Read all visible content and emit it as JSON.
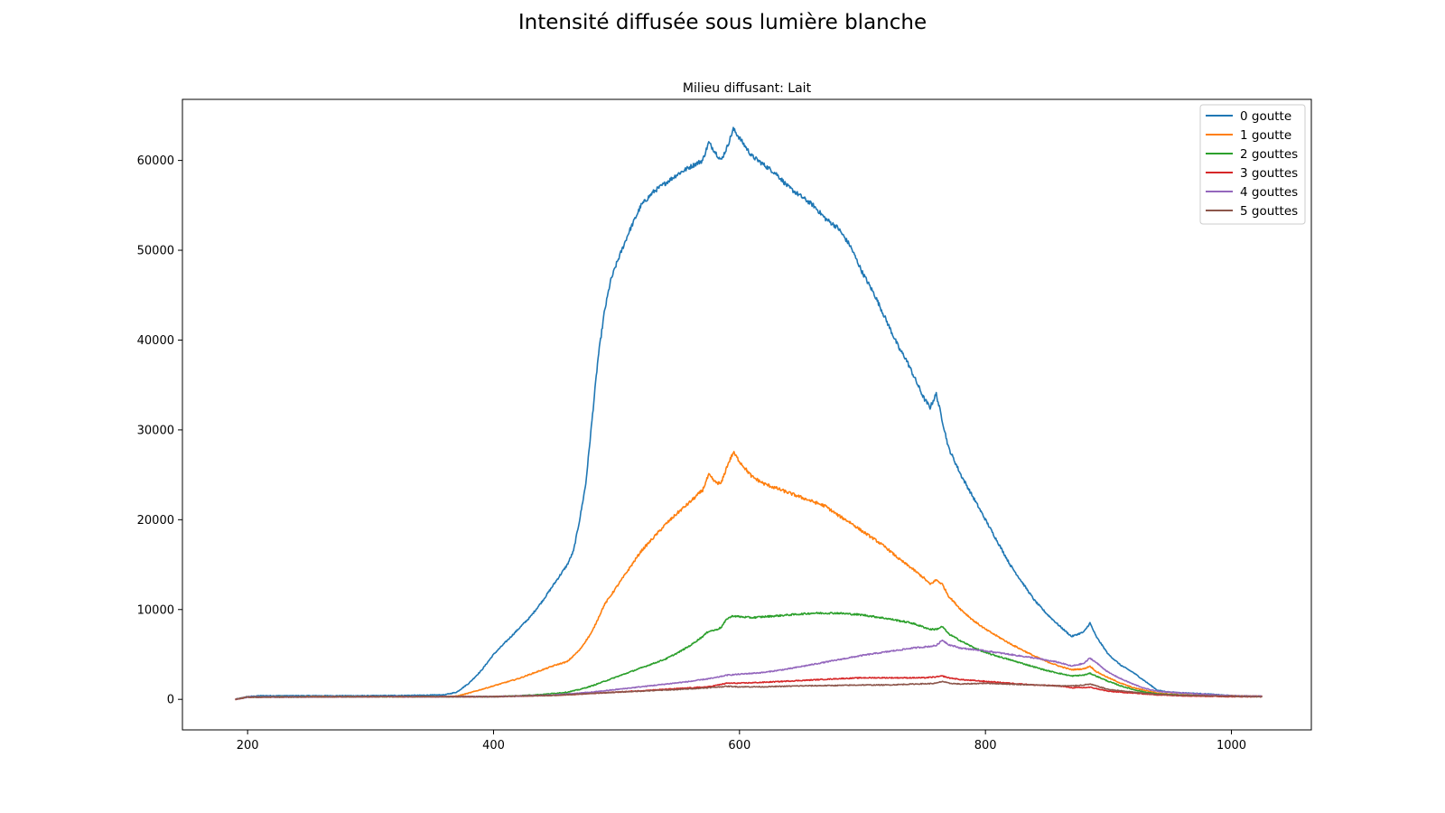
{
  "figure_title": "Intensité diffusée sous lumière blanche",
  "chart_data": {
    "type": "line",
    "title": "Milieu diffusant: Lait",
    "xlabel": "",
    "ylabel": "",
    "xlim": [
      147,
      1065
    ],
    "ylim": [
      -3400,
      66800
    ],
    "x_ticks": [
      200,
      400,
      600,
      800,
      1000
    ],
    "y_ticks": [
      0,
      10000,
      20000,
      30000,
      40000,
      50000,
      60000
    ],
    "grid": false,
    "legend_position": "top-right",
    "series": [
      {
        "name": "0 goutte",
        "color": "#1f77b4",
        "points": [
          [
            190,
            0
          ],
          [
            200,
            300
          ],
          [
            210,
            400
          ],
          [
            250,
            400
          ],
          [
            300,
            400
          ],
          [
            340,
            450
          ],
          [
            360,
            500
          ],
          [
            370,
            800
          ],
          [
            380,
            1800
          ],
          [
            390,
            3200
          ],
          [
            400,
            5000
          ],
          [
            410,
            6400
          ],
          [
            420,
            7800
          ],
          [
            430,
            9200
          ],
          [
            440,
            11000
          ],
          [
            450,
            13000
          ],
          [
            460,
            15000
          ],
          [
            465,
            16500
          ],
          [
            470,
            20000
          ],
          [
            475,
            24000
          ],
          [
            480,
            31000
          ],
          [
            485,
            38000
          ],
          [
            490,
            43000
          ],
          [
            495,
            46500
          ],
          [
            500,
            48500
          ],
          [
            510,
            52000
          ],
          [
            520,
            55000
          ],
          [
            530,
            56500
          ],
          [
            540,
            57500
          ],
          [
            550,
            58500
          ],
          [
            560,
            59300
          ],
          [
            570,
            60000
          ],
          [
            575,
            62000
          ],
          [
            580,
            61000
          ],
          [
            585,
            60000
          ],
          [
            590,
            61500
          ],
          [
            595,
            63500
          ],
          [
            600,
            62500
          ],
          [
            610,
            60500
          ],
          [
            620,
            59500
          ],
          [
            630,
            58500
          ],
          [
            640,
            57000
          ],
          [
            650,
            56000
          ],
          [
            660,
            55000
          ],
          [
            670,
            53500
          ],
          [
            680,
            52500
          ],
          [
            690,
            50500
          ],
          [
            700,
            47500
          ],
          [
            710,
            45000
          ],
          [
            720,
            42000
          ],
          [
            730,
            39000
          ],
          [
            735,
            38000
          ],
          [
            740,
            36500
          ],
          [
            750,
            33500
          ],
          [
            755,
            32500
          ],
          [
            760,
            34000
          ],
          [
            765,
            31000
          ],
          [
            770,
            28000
          ],
          [
            780,
            25000
          ],
          [
            790,
            22500
          ],
          [
            800,
            20000
          ],
          [
            810,
            17500
          ],
          [
            820,
            15000
          ],
          [
            830,
            13000
          ],
          [
            840,
            11000
          ],
          [
            850,
            9500
          ],
          [
            860,
            8200
          ],
          [
            870,
            7000
          ],
          [
            880,
            7500
          ],
          [
            885,
            8500
          ],
          [
            890,
            7000
          ],
          [
            900,
            5000
          ],
          [
            910,
            3800
          ],
          [
            920,
            3000
          ],
          [
            930,
            2000
          ],
          [
            940,
            1000
          ],
          [
            950,
            800
          ],
          [
            980,
            600
          ],
          [
            1000,
            400
          ],
          [
            1025,
            350
          ]
        ]
      },
      {
        "name": "1 goutte",
        "color": "#ff7f0e",
        "points": [
          [
            190,
            0
          ],
          [
            200,
            250
          ],
          [
            250,
            300
          ],
          [
            300,
            300
          ],
          [
            350,
            300
          ],
          [
            370,
            350
          ],
          [
            380,
            700
          ],
          [
            390,
            1100
          ],
          [
            400,
            1500
          ],
          [
            410,
            1900
          ],
          [
            420,
            2300
          ],
          [
            430,
            2800
          ],
          [
            440,
            3300
          ],
          [
            450,
            3800
          ],
          [
            460,
            4200
          ],
          [
            470,
            5500
          ],
          [
            480,
            7500
          ],
          [
            490,
            10500
          ],
          [
            500,
            12500
          ],
          [
            510,
            14500
          ],
          [
            520,
            16500
          ],
          [
            530,
            18000
          ],
          [
            540,
            19500
          ],
          [
            550,
            20800
          ],
          [
            560,
            22000
          ],
          [
            570,
            23300
          ],
          [
            575,
            25000
          ],
          [
            580,
            24200
          ],
          [
            585,
            24000
          ],
          [
            590,
            26000
          ],
          [
            595,
            27500
          ],
          [
            600,
            26500
          ],
          [
            610,
            24800
          ],
          [
            620,
            24000
          ],
          [
            630,
            23500
          ],
          [
            640,
            23000
          ],
          [
            650,
            22500
          ],
          [
            660,
            22000
          ],
          [
            670,
            21500
          ],
          [
            680,
            20500
          ],
          [
            690,
            19700
          ],
          [
            700,
            18700
          ],
          [
            710,
            17800
          ],
          [
            720,
            16800
          ],
          [
            730,
            15600
          ],
          [
            740,
            14600
          ],
          [
            750,
            13500
          ],
          [
            755,
            12800
          ],
          [
            760,
            13300
          ],
          [
            765,
            12800
          ],
          [
            770,
            11500
          ],
          [
            780,
            10000
          ],
          [
            790,
            8800
          ],
          [
            800,
            7800
          ],
          [
            810,
            7000
          ],
          [
            820,
            6200
          ],
          [
            830,
            5500
          ],
          [
            840,
            4800
          ],
          [
            850,
            4200
          ],
          [
            860,
            3700
          ],
          [
            870,
            3300
          ],
          [
            880,
            3400
          ],
          [
            885,
            3700
          ],
          [
            890,
            3100
          ],
          [
            900,
            2400
          ],
          [
            910,
            1800
          ],
          [
            920,
            1300
          ],
          [
            930,
            1000
          ],
          [
            940,
            700
          ],
          [
            960,
            500
          ],
          [
            1000,
            400
          ],
          [
            1025,
            350
          ]
        ]
      },
      {
        "name": "2 gouttes",
        "color": "#2ca02c",
        "points": [
          [
            190,
            0
          ],
          [
            200,
            250
          ],
          [
            300,
            300
          ],
          [
            400,
            300
          ],
          [
            420,
            400
          ],
          [
            440,
            550
          ],
          [
            460,
            800
          ],
          [
            470,
            1100
          ],
          [
            480,
            1500
          ],
          [
            490,
            2000
          ],
          [
            500,
            2500
          ],
          [
            510,
            3000
          ],
          [
            520,
            3500
          ],
          [
            530,
            4000
          ],
          [
            540,
            4500
          ],
          [
            550,
            5200
          ],
          [
            560,
            6000
          ],
          [
            570,
            7000
          ],
          [
            575,
            7600
          ],
          [
            580,
            7700
          ],
          [
            585,
            8000
          ],
          [
            590,
            9000
          ],
          [
            595,
            9300
          ],
          [
            600,
            9200
          ],
          [
            610,
            9100
          ],
          [
            620,
            9200
          ],
          [
            640,
            9400
          ],
          [
            660,
            9600
          ],
          [
            680,
            9600
          ],
          [
            700,
            9400
          ],
          [
            720,
            9000
          ],
          [
            740,
            8500
          ],
          [
            755,
            7800
          ],
          [
            760,
            7800
          ],
          [
            765,
            8100
          ],
          [
            770,
            7300
          ],
          [
            780,
            6500
          ],
          [
            790,
            5800
          ],
          [
            800,
            5200
          ],
          [
            810,
            4800
          ],
          [
            820,
            4400
          ],
          [
            830,
            4000
          ],
          [
            840,
            3600
          ],
          [
            850,
            3200
          ],
          [
            860,
            2900
          ],
          [
            870,
            2600
          ],
          [
            880,
            2700
          ],
          [
            885,
            2900
          ],
          [
            890,
            2600
          ],
          [
            900,
            2000
          ],
          [
            910,
            1500
          ],
          [
            920,
            1100
          ],
          [
            930,
            800
          ],
          [
            940,
            600
          ],
          [
            960,
            450
          ],
          [
            1000,
            350
          ],
          [
            1025,
            300
          ]
        ]
      },
      {
        "name": "3 gouttes",
        "color": "#d62728",
        "points": [
          [
            190,
            0
          ],
          [
            200,
            250
          ],
          [
            300,
            300
          ],
          [
            400,
            300
          ],
          [
            450,
            450
          ],
          [
            500,
            800
          ],
          [
            550,
            1200
          ],
          [
            575,
            1400
          ],
          [
            590,
            1800
          ],
          [
            600,
            1800
          ],
          [
            620,
            1900
          ],
          [
            650,
            2100
          ],
          [
            680,
            2300
          ],
          [
            700,
            2400
          ],
          [
            730,
            2400
          ],
          [
            750,
            2400
          ],
          [
            760,
            2500
          ],
          [
            765,
            2600
          ],
          [
            770,
            2400
          ],
          [
            780,
            2200
          ],
          [
            800,
            2000
          ],
          [
            820,
            1800
          ],
          [
            840,
            1600
          ],
          [
            860,
            1500
          ],
          [
            870,
            1300
          ],
          [
            880,
            1300
          ],
          [
            885,
            1350
          ],
          [
            890,
            1200
          ],
          [
            900,
            900
          ],
          [
            920,
            700
          ],
          [
            940,
            500
          ],
          [
            960,
            400
          ],
          [
            1000,
            300
          ],
          [
            1025,
            300
          ]
        ]
      },
      {
        "name": "4 gouttes",
        "color": "#9467bd",
        "points": [
          [
            190,
            0
          ],
          [
            200,
            250
          ],
          [
            300,
            300
          ],
          [
            400,
            300
          ],
          [
            450,
            500
          ],
          [
            480,
            800
          ],
          [
            500,
            1100
          ],
          [
            520,
            1400
          ],
          [
            540,
            1700
          ],
          [
            560,
            2000
          ],
          [
            580,
            2400
          ],
          [
            590,
            2700
          ],
          [
            600,
            2800
          ],
          [
            620,
            3000
          ],
          [
            640,
            3400
          ],
          [
            660,
            3900
          ],
          [
            680,
            4400
          ],
          [
            700,
            4900
          ],
          [
            720,
            5300
          ],
          [
            740,
            5700
          ],
          [
            755,
            5900
          ],
          [
            760,
            6000
          ],
          [
            765,
            6600
          ],
          [
            770,
            6100
          ],
          [
            780,
            5700
          ],
          [
            800,
            5400
          ],
          [
            820,
            5000
          ],
          [
            840,
            4600
          ],
          [
            860,
            4100
          ],
          [
            870,
            3700
          ],
          [
            880,
            4000
          ],
          [
            885,
            4600
          ],
          [
            890,
            4100
          ],
          [
            900,
            3000
          ],
          [
            910,
            2300
          ],
          [
            920,
            1700
          ],
          [
            930,
            1200
          ],
          [
            940,
            900
          ],
          [
            960,
            700
          ],
          [
            1000,
            400
          ],
          [
            1025,
            350
          ]
        ]
      },
      {
        "name": "5 gouttes",
        "color": "#8c564b",
        "points": [
          [
            190,
            0
          ],
          [
            200,
            250
          ],
          [
            300,
            300
          ],
          [
            400,
            300
          ],
          [
            450,
            450
          ],
          [
            500,
            800
          ],
          [
            550,
            1100
          ],
          [
            575,
            1300
          ],
          [
            590,
            1450
          ],
          [
            600,
            1400
          ],
          [
            620,
            1400
          ],
          [
            650,
            1500
          ],
          [
            680,
            1550
          ],
          [
            700,
            1600
          ],
          [
            720,
            1600
          ],
          [
            740,
            1700
          ],
          [
            755,
            1750
          ],
          [
            760,
            1800
          ],
          [
            765,
            2000
          ],
          [
            770,
            1800
          ],
          [
            780,
            1700
          ],
          [
            800,
            1800
          ],
          [
            820,
            1700
          ],
          [
            840,
            1600
          ],
          [
            860,
            1500
          ],
          [
            870,
            1500
          ],
          [
            880,
            1600
          ],
          [
            885,
            1700
          ],
          [
            890,
            1500
          ],
          [
            900,
            1100
          ],
          [
            920,
            800
          ],
          [
            940,
            550
          ],
          [
            960,
            450
          ],
          [
            1000,
            350
          ],
          [
            1025,
            300
          ]
        ]
      }
    ]
  }
}
